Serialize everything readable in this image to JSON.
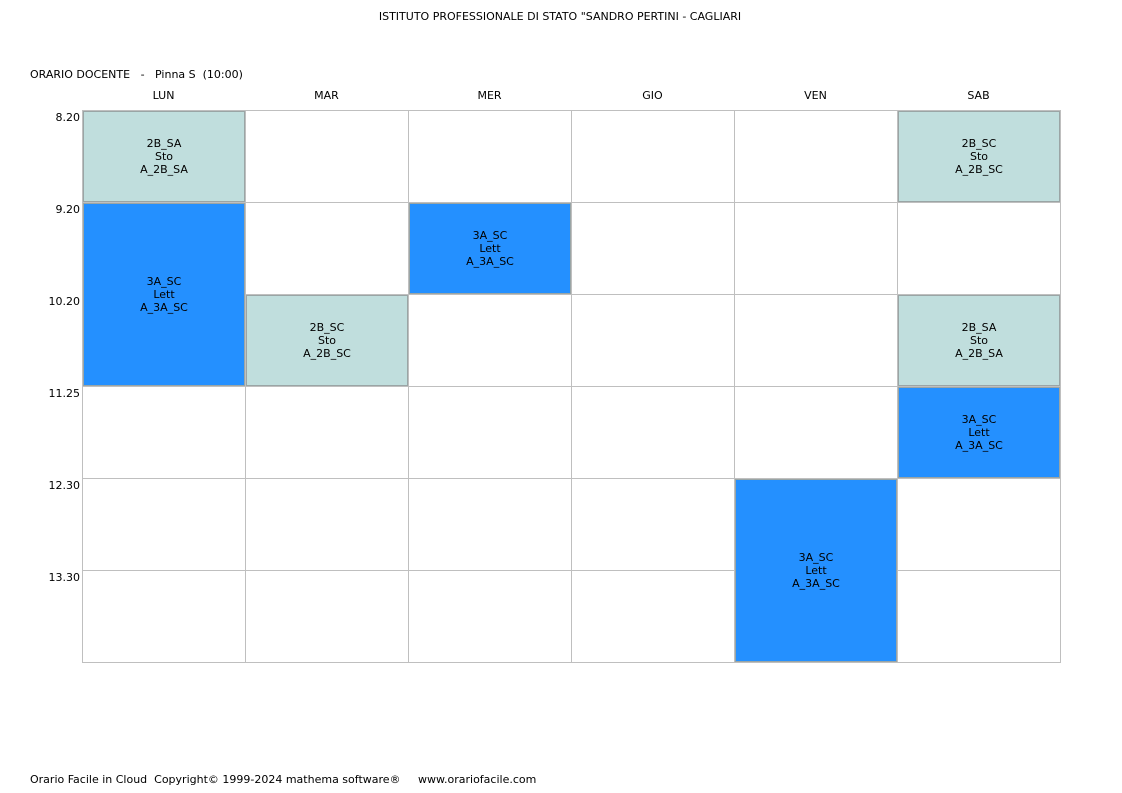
{
  "header": {
    "school": "ISTITUTO PROFESSIONALE DI STATO \"SANDRO PERTINI - CAGLIARI",
    "subtitle": "ORARIO DOCENTE   -   Pinna S  (10:00)"
  },
  "days": [
    "LUN",
    "MAR",
    "MER",
    "GIO",
    "VEN",
    "SAB"
  ],
  "times": [
    "8.20",
    "9.20",
    "10.20",
    "11.25",
    "12.30",
    "13.30"
  ],
  "colors": {
    "storia": "#c0dedd",
    "lettere": "#2490ff",
    "grid_line": "#bfbfbf"
  },
  "lessons": [
    {
      "day": 0,
      "start": 0,
      "span": 1,
      "type": "storia",
      "cls": "2B_SA",
      "subject": "Sto",
      "room": "A_2B_SA"
    },
    {
      "day": 0,
      "start": 1,
      "span": 2,
      "type": "lettere",
      "cls": "3A_SC",
      "subject": "Lett",
      "room": "A_3A_SC"
    },
    {
      "day": 1,
      "start": 2,
      "span": 1,
      "type": "storia",
      "cls": "2B_SC",
      "subject": "Sto",
      "room": "A_2B_SC"
    },
    {
      "day": 2,
      "start": 1,
      "span": 1,
      "type": "lettere",
      "cls": "3A_SC",
      "subject": "Lett",
      "room": "A_3A_SC"
    },
    {
      "day": 4,
      "start": 4,
      "span": 2,
      "type": "lettere",
      "cls": "3A_SC",
      "subject": "Lett",
      "room": "A_3A_SC"
    },
    {
      "day": 5,
      "start": 0,
      "span": 1,
      "type": "storia",
      "cls": "2B_SC",
      "subject": "Sto",
      "room": "A_2B_SC"
    },
    {
      "day": 5,
      "start": 2,
      "span": 1,
      "type": "storia",
      "cls": "2B_SA",
      "subject": "Sto",
      "room": "A_2B_SA"
    },
    {
      "day": 5,
      "start": 3,
      "span": 1,
      "type": "lettere",
      "cls": "3A_SC",
      "subject": "Lett",
      "room": "A_3A_SC"
    }
  ],
  "footer": "Orario Facile in Cloud  Copyright© 1999-2024 mathema software®     www.orariofacile.com"
}
